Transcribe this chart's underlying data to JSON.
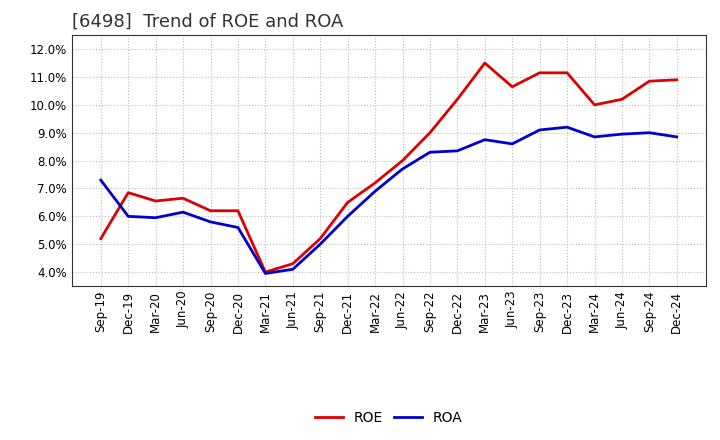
{
  "title": "[6498]  Trend of ROE and ROA",
  "x_labels": [
    "Sep-19",
    "Dec-19",
    "Mar-20",
    "Jun-20",
    "Sep-20",
    "Dec-20",
    "Mar-21",
    "Jun-21",
    "Sep-21",
    "Dec-21",
    "Mar-22",
    "Jun-22",
    "Sep-22",
    "Dec-22",
    "Mar-23",
    "Jun-23",
    "Sep-23",
    "Dec-23",
    "Mar-24",
    "Jun-24",
    "Sep-24",
    "Dec-24"
  ],
  "ROE": [
    5.2,
    6.85,
    6.55,
    6.65,
    6.2,
    6.2,
    4.0,
    4.3,
    5.2,
    6.5,
    7.2,
    8.0,
    9.0,
    10.2,
    11.5,
    10.65,
    11.15,
    11.15,
    10.0,
    10.2,
    10.85,
    10.9
  ],
  "ROA": [
    7.3,
    6.0,
    5.95,
    6.15,
    5.8,
    5.6,
    3.95,
    4.1,
    5.0,
    6.0,
    6.9,
    7.7,
    8.3,
    8.35,
    8.75,
    8.6,
    9.1,
    9.2,
    8.85,
    8.95,
    9.0,
    8.85
  ],
  "ROE_color": "#dd0000",
  "ROA_color": "#0000cc",
  "line_width": 2.0,
  "ylim_min": 3.5,
  "ylim_max": 12.5,
  "yticks": [
    4.0,
    5.0,
    6.0,
    7.0,
    8.0,
    9.0,
    10.0,
    11.0,
    12.0
  ],
  "background_color": "#ffffff",
  "plot_bg_color": "#ffffff",
  "grid_color": "#bbbbbb",
  "title_fontsize": 13,
  "tick_fontsize": 8.5,
  "legend_fontsize": 10
}
